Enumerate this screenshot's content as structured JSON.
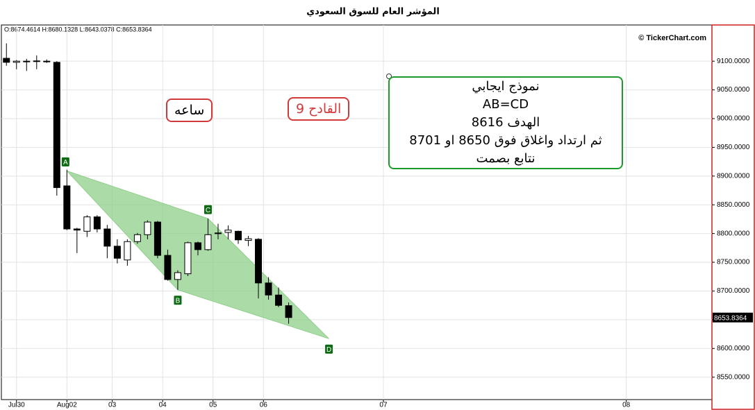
{
  "chart_data": {
    "type": "candlestick",
    "title": "المؤشر العام للسوق السعودي",
    "ohlc_header": "O:8674.4614 H:8680.1328 L:8643.0378 C:8653.8364",
    "copyright": "© TickerChart.com",
    "x": [
      0,
      1,
      2,
      3,
      4,
      5,
      6,
      7,
      8,
      9,
      10,
      11,
      12,
      13,
      14,
      15,
      16,
      17,
      18,
      19,
      20,
      21,
      22,
      23,
      24,
      25,
      26,
      27,
      28
    ],
    "open": [
      9105,
      9098,
      9099,
      9100,
      9100,
      9098,
      8883,
      8808,
      8804,
      8829,
      8808,
      8778,
      8754,
      8786,
      8798,
      8820,
      8762,
      8720,
      8730,
      8784,
      8772,
      8800,
      8802,
      8804,
      8788,
      8790,
      8714,
      8693,
      8674.4614
    ],
    "high": [
      9131,
      9102,
      9104,
      9110,
      9103,
      9100,
      8911,
      8810,
      8832,
      8832,
      8815,
      8790,
      8790,
      8801,
      8823,
      8822,
      8772,
      8736,
      8786,
      8786,
      8826,
      8817,
      8814,
      8805,
      8796,
      8792,
      8724,
      8706,
      8680.1328
    ],
    "low": [
      9092,
      9086,
      9083,
      9086,
      9097,
      8866,
      8806,
      8766,
      8794,
      8802,
      8757,
      8748,
      8744,
      8782,
      8790,
      8757,
      8718,
      8702,
      8726,
      8762,
      8770,
      8790,
      8790,
      8782,
      8778,
      8687,
      8685,
      8672,
      8643.0378
    ],
    "close": [
      9098,
      9100,
      9100,
      9100.5,
      9100,
      8880,
      8808,
      8806,
      8829,
      8808,
      8778,
      8757,
      8786,
      8798,
      8820,
      8762,
      8720,
      8732,
      8784,
      8772,
      8798,
      8801,
      8806,
      8789,
      8791,
      8714,
      8693,
      8675,
      8653.8364
    ],
    "up_color": "#ffffff",
    "down_color": "#000000",
    "pattern": {
      "color": "#8fcf8a",
      "points": [
        {
          "label": "A",
          "x": 6,
          "y": 8909
        },
        {
          "label": "C",
          "x": 20,
          "y": 8826
        },
        {
          "label": "D",
          "x": 32,
          "y": 8617
        },
        {
          "label": "B",
          "x": 17,
          "y": 8702
        }
      ]
    },
    "xlim": [
      -0.5,
      70
    ],
    "xticks": [
      {
        "value": 1,
        "label": "Jul30"
      },
      {
        "value": 6,
        "label": "Aug02"
      },
      {
        "value": 10.5,
        "label": "03"
      },
      {
        "value": 15.5,
        "label": "04"
      },
      {
        "value": 20.5,
        "label": "05"
      },
      {
        "value": 25.5,
        "label": "06"
      },
      {
        "value": 37.4,
        "label": "07"
      },
      {
        "value": 61.5,
        "label": "08"
      }
    ],
    "ylim": [
      8511,
      9163
    ],
    "yticks": [
      {
        "value": 8550,
        "label": "8550.0000"
      },
      {
        "value": 8600,
        "label": "8600.0000"
      },
      {
        "value": 8650,
        "label": "8650.0000"
      },
      {
        "value": 8700,
        "label": "8700.0000"
      },
      {
        "value": 8750,
        "label": "8750.0000"
      },
      {
        "value": 8800,
        "label": "8800.0000"
      },
      {
        "value": 8850,
        "label": "8850.0000"
      },
      {
        "value": 8900,
        "label": "8900.0000"
      },
      {
        "value": 8950,
        "label": "8950.0000"
      },
      {
        "value": 9000,
        "label": "9000.0000"
      },
      {
        "value": 9050,
        "label": "9050.0000"
      },
      {
        "value": 9100,
        "label": "9100.0000"
      }
    ],
    "grid": true,
    "annotations": {
      "timeframe": "ساعه",
      "trigger": "القادح 9",
      "box_lines": [
        "نموذج ايجابي",
        "AB=CD",
        "الهدف 8616",
        "ثم ارتداد واغلاق فوق 8650 او 8701",
        "نتابع بصمت"
      ]
    }
  }
}
